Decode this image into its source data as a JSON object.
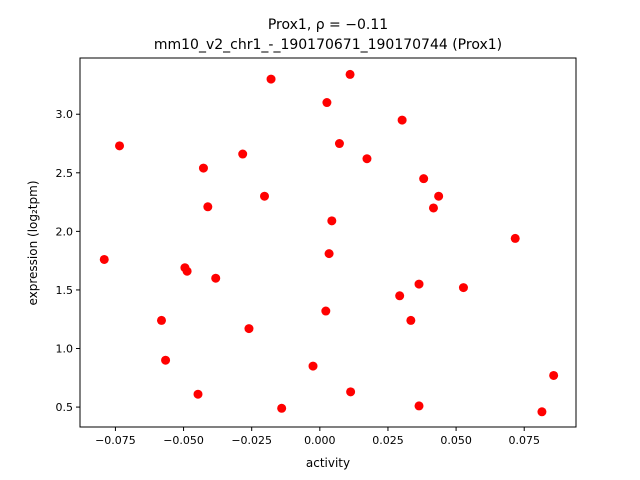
{
  "chart_data": {
    "type": "scatter",
    "title_line1": "Prox1, ρ = −0.11",
    "title_line2": "mm10_v2_chr1_-_190170671_190170744 (Prox1)",
    "xlabel": "activity",
    "ylabel": "expression (log₂tpm)",
    "xlim": [
      -0.088,
      0.094
    ],
    "ylim": [
      0.33,
      3.48
    ],
    "xticks": [
      -0.075,
      -0.05,
      -0.025,
      0.0,
      0.025,
      0.05,
      0.075
    ],
    "xtick_labels": [
      "−0.075",
      "−0.050",
      "−0.025",
      "0.000",
      "0.025",
      "0.050",
      "0.075"
    ],
    "yticks": [
      0.5,
      1.0,
      1.5,
      2.0,
      2.5,
      3.0
    ],
    "ytick_labels": [
      "0.5",
      "1.0",
      "1.5",
      "2.0",
      "2.5",
      "3.0"
    ],
    "grid": false,
    "marker_color": "#ff0000",
    "points": [
      {
        "x": -0.0179,
        "y": 3.3
      },
      {
        "x": 0.0111,
        "y": 3.34
      },
      {
        "x": 0.0026,
        "y": 3.1
      },
      {
        "x": 0.0302,
        "y": 2.95
      },
      {
        "x": -0.0735,
        "y": 2.73
      },
      {
        "x": 0.0072,
        "y": 2.75
      },
      {
        "x": -0.0283,
        "y": 2.66
      },
      {
        "x": 0.0173,
        "y": 2.62
      },
      {
        "x": -0.0427,
        "y": 2.54
      },
      {
        "x": 0.0381,
        "y": 2.45
      },
      {
        "x": -0.0203,
        "y": 2.3
      },
      {
        "x": 0.0436,
        "y": 2.3
      },
      {
        "x": -0.0411,
        "y": 2.21
      },
      {
        "x": 0.0417,
        "y": 2.2
      },
      {
        "x": 0.0044,
        "y": 2.09
      },
      {
        "x": 0.0717,
        "y": 1.94
      },
      {
        "x": 0.0034,
        "y": 1.81
      },
      {
        "x": -0.0791,
        "y": 1.76
      },
      {
        "x": -0.0495,
        "y": 1.69
      },
      {
        "x": -0.0487,
        "y": 1.66
      },
      {
        "x": -0.0382,
        "y": 1.6
      },
      {
        "x": 0.0364,
        "y": 1.55
      },
      {
        "x": 0.0527,
        "y": 1.52
      },
      {
        "x": 0.0293,
        "y": 1.45
      },
      {
        "x": 0.0022,
        "y": 1.32
      },
      {
        "x": -0.0581,
        "y": 1.24
      },
      {
        "x": 0.0334,
        "y": 1.24
      },
      {
        "x": -0.026,
        "y": 1.17
      },
      {
        "x": -0.0566,
        "y": 0.9
      },
      {
        "x": -0.0025,
        "y": 0.85
      },
      {
        "x": 0.0858,
        "y": 0.77
      },
      {
        "x": 0.0113,
        "y": 0.63
      },
      {
        "x": -0.0447,
        "y": 0.61
      },
      {
        "x": 0.0364,
        "y": 0.51
      },
      {
        "x": -0.014,
        "y": 0.49
      },
      {
        "x": 0.0815,
        "y": 0.46
      }
    ]
  }
}
